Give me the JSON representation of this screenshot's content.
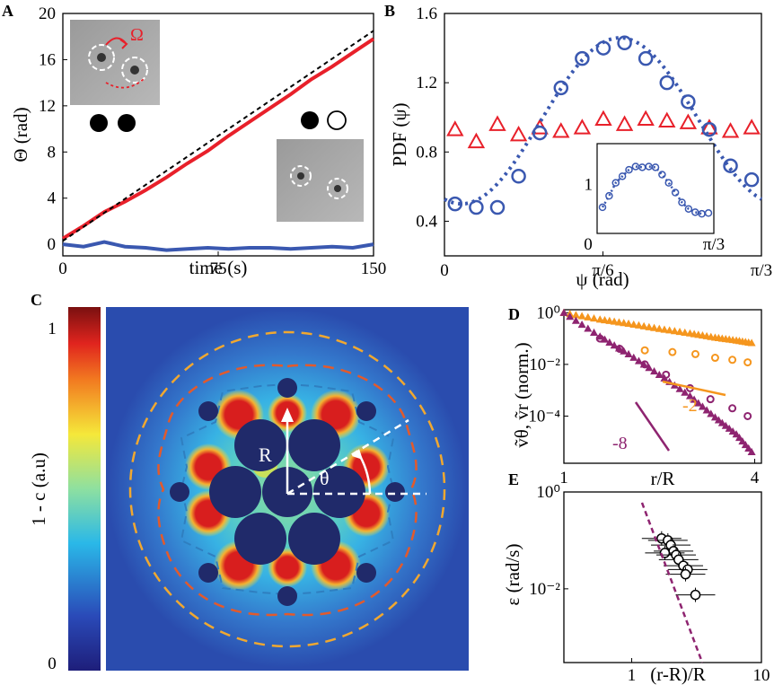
{
  "colors": {
    "red": "#e8202a",
    "blue": "#3a58b0",
    "purple": "#8e2470",
    "orange": "#f5961e",
    "axis": "#000000"
  },
  "panels": {
    "A": "A",
    "B": "B",
    "C": "C",
    "D": "D",
    "E": "E"
  },
  "chart_data": [
    {
      "id": "A",
      "type": "line",
      "xlabel": "time (s)",
      "ylabel": "Θ (rad)",
      "xlim": [
        0,
        150
      ],
      "ylim": [
        -1,
        20
      ],
      "xticks": [
        "0",
        "75",
        "150"
      ],
      "xtick_values": [
        0,
        75,
        150
      ],
      "yticks": [
        "0",
        "4",
        "8",
        "12",
        "16",
        "20"
      ],
      "ytick_values": [
        0,
        4,
        8,
        12,
        16,
        20
      ],
      "omega_label": "Ω",
      "series": [
        {
          "color": "red",
          "x": [
            0,
            10,
            20,
            30,
            40,
            50,
            60,
            70,
            80,
            90,
            100,
            110,
            120,
            130,
            140,
            150
          ],
          "values": [
            0.5,
            1.6,
            2.8,
            3.7,
            4.7,
            5.8,
            7.0,
            8.1,
            9.4,
            10.6,
            11.8,
            13.0,
            14.3,
            15.4,
            16.6,
            17.8
          ]
        },
        {
          "color": "blue",
          "x": [
            0,
            10,
            20,
            30,
            40,
            50,
            60,
            70,
            80,
            90,
            100,
            110,
            120,
            130,
            140,
            150
          ],
          "values": [
            0,
            -0.2,
            0.2,
            -0.2,
            -0.3,
            -0.5,
            -0.4,
            -0.3,
            -0.4,
            -0.3,
            -0.3,
            -0.4,
            -0.3,
            -0.2,
            -0.3,
            0
          ]
        },
        {
          "color": "black",
          "style": "dashed",
          "x": [
            0,
            150
          ],
          "values": [
            0.3,
            18.5
          ]
        }
      ]
    },
    {
      "id": "B",
      "type": "scatter",
      "xlabel": "ψ (rad)",
      "ylabel": "PDF (ψ)",
      "xlim": [
        0,
        1.0472
      ],
      "ylim": [
        0.2,
        1.6
      ],
      "xticks": [
        "0",
        "π/6",
        "π/3"
      ],
      "xtick_values": [
        0,
        0.5236,
        1.0472
      ],
      "yticks": [
        "0.4",
        "0.8",
        "1.2",
        "1.6"
      ],
      "ytick_values": [
        0.4,
        0.8,
        1.2,
        1.6
      ],
      "series": [
        {
          "color": "red",
          "marker": "triangle",
          "x": [
            0.035,
            0.105,
            0.175,
            0.245,
            0.315,
            0.385,
            0.455,
            0.525,
            0.595,
            0.665,
            0.735,
            0.805,
            0.875,
            0.945,
            1.015
          ],
          "values": [
            0.93,
            0.86,
            0.96,
            0.9,
            0.94,
            0.92,
            0.94,
            0.99,
            0.96,
            0.99,
            0.98,
            0.97,
            0.94,
            0.92,
            0.94
          ]
        },
        {
          "color": "blue",
          "marker": "circle",
          "x": [
            0.035,
            0.105,
            0.175,
            0.245,
            0.315,
            0.385,
            0.455,
            0.525,
            0.595,
            0.665,
            0.735,
            0.805,
            0.875,
            0.945,
            1.015
          ],
          "values": [
            0.5,
            0.48,
            0.48,
            0.66,
            0.91,
            1.17,
            1.34,
            1.4,
            1.43,
            1.34,
            1.2,
            1.09,
            0.93,
            0.72,
            0.64
          ]
        },
        {
          "color": "blue",
          "style": "dotted",
          "fit": "cosine",
          "mean": 0.98,
          "amp": 0.48,
          "peak": 0.58,
          "period": 1.0472
        }
      ],
      "inset": {
        "xticks": [
          "0",
          "π/3"
        ],
        "yticks": [
          "1"
        ],
        "ylim": [
          0.4,
          1.5
        ],
        "values": [
          0.72,
          0.86,
          1.02,
          1.1,
          1.18,
          1.22,
          1.21,
          1.22,
          1.21,
          1.12,
          1.02,
          0.9,
          0.78,
          0.7,
          0.66,
          0.64,
          0.65
        ]
      }
    },
    {
      "id": "C",
      "type": "heatmap",
      "colorbar_label": "1 - c (a.u)",
      "colorbar_ticks": [
        "1",
        "0"
      ],
      "labels": {
        "R": "R",
        "theta": "θ"
      }
    },
    {
      "id": "D",
      "type": "scatter",
      "xlabel": "r/R",
      "ylabel": "ṽθ, ṽr (norm.)",
      "xscale": "log",
      "yscale": "log",
      "xlim": [
        1,
        4.2
      ],
      "ylim": [
        1.5e-06,
        1.3
      ],
      "xticks": [
        "1",
        "4"
      ],
      "xtick_values": [
        1,
        4
      ],
      "yticks": [
        "10⁰",
        "10⁻²",
        "10⁻⁴"
      ],
      "ytick_values": [
        1,
        0.01,
        0.0001
      ],
      "slope_labels": [
        "-2",
        "-8"
      ],
      "series": [
        {
          "color": "orange",
          "marker": "triangle",
          "x": [
            1.0,
            1.3,
            1.6,
            2.0,
            2.5,
            3.0,
            3.5,
            4.0
          ],
          "values": [
            1.0,
            0.55,
            0.38,
            0.24,
            0.16,
            0.11,
            0.085,
            0.065
          ]
        },
        {
          "color": "orange",
          "marker": "circle",
          "x": [
            1.8,
            2.2,
            2.6,
            3.0,
            3.4,
            3.8
          ],
          "values": [
            0.035,
            0.03,
            0.025,
            0.018,
            0.015,
            0.012
          ]
        },
        {
          "color": "purple",
          "marker": "triangle",
          "x": [
            1.0,
            1.3,
            1.6,
            2.0,
            2.5,
            3.0,
            3.5,
            4.0
          ],
          "values": [
            1.0,
            0.12,
            0.025,
            0.004,
            0.0006,
            9e-05,
            2e-05,
            3e-06
          ]
        },
        {
          "color": "purple",
          "marker": "circle",
          "x": [
            1.3,
            1.5,
            1.8,
            2.1,
            2.5,
            2.9,
            3.4,
            3.8
          ],
          "values": [
            0.1,
            0.04,
            0.01,
            0.004,
            0.0012,
            0.00045,
            0.0002,
            0.0001
          ]
        }
      ]
    },
    {
      "id": "E",
      "type": "scatter",
      "xlabel": "(r-R)/R",
      "ylabel": "ε (rad/s)",
      "xscale": "log",
      "yscale": "log",
      "xlim": [
        0.3,
        10
      ],
      "ylim": [
        0.0003,
        1
      ],
      "xticks": [
        "1",
        "10"
      ],
      "xtick_values": [
        1,
        10
      ],
      "yticks": [
        "10⁰",
        "10⁻²"
      ],
      "ytick_values": [
        1,
        0.01
      ],
      "series": [
        {
          "color": "white",
          "marker": "circle",
          "x": [
            1.7,
            1.9,
            2.0,
            2.1,
            1.8,
            2.2,
            2.3,
            2.5,
            2.7,
            2.6,
            3.1
          ],
          "values": [
            0.11,
            0.1,
            0.08,
            0.06,
            0.055,
            0.05,
            0.04,
            0.03,
            0.025,
            0.02,
            0.0075
          ]
        },
        {
          "color": "purple",
          "style": "dashed",
          "fit": "power",
          "slope": -8,
          "x": [
            1.2,
            3.5
          ],
          "values": [
            0.6,
            0.0003
          ]
        }
      ]
    }
  ]
}
